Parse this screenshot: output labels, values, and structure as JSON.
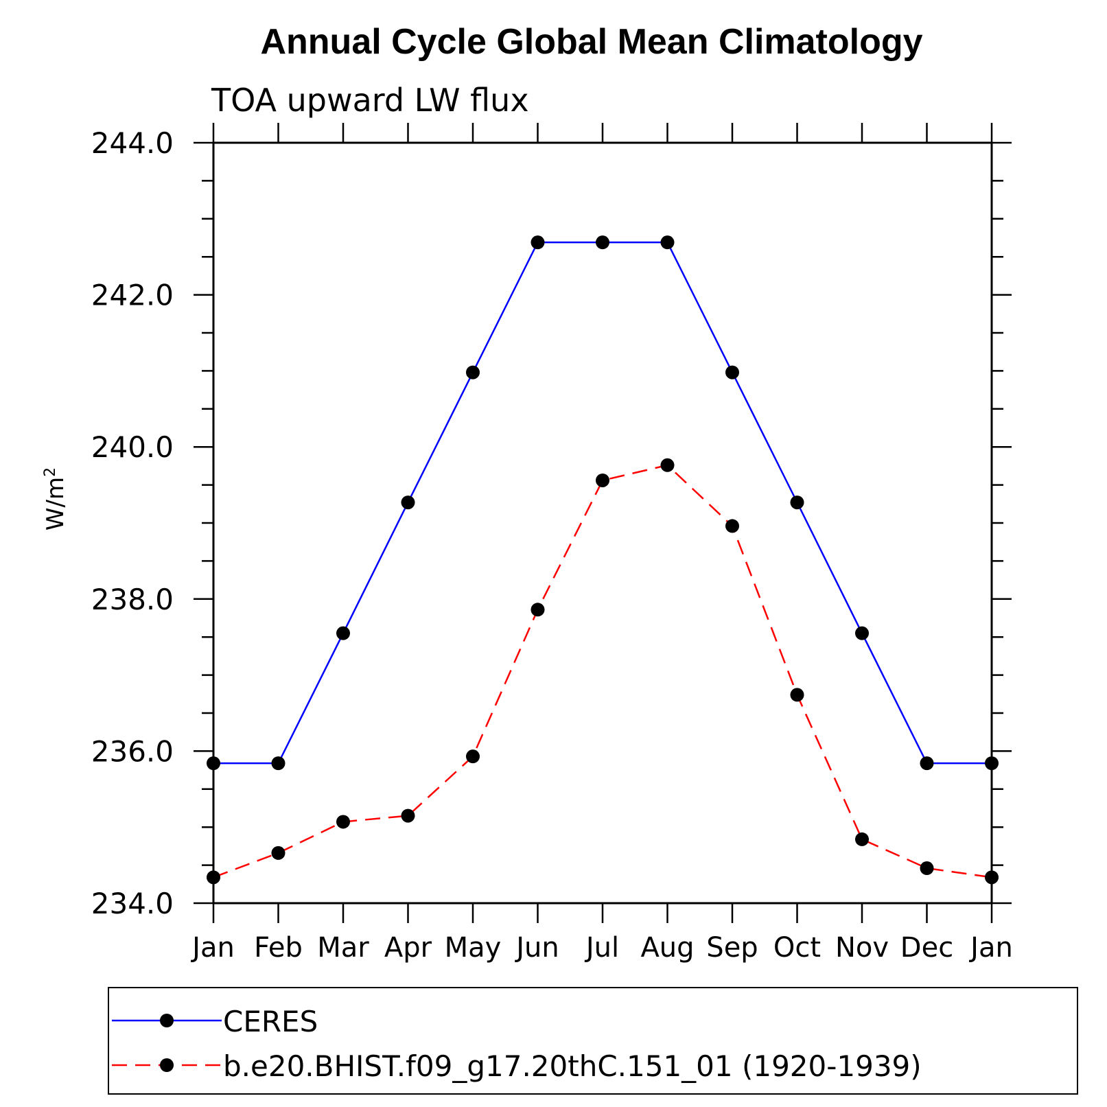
{
  "chart_data": {
    "type": "line",
    "title": "Annual Cycle Global Mean Climatology",
    "subtitle": "TOA upward LW flux",
    "xlabel": "",
    "ylabel": "W/m",
    "ylabel_superscript": "2",
    "categories": [
      "Jan",
      "Feb",
      "Mar",
      "Apr",
      "May",
      "Jun",
      "Jul",
      "Aug",
      "Sep",
      "Oct",
      "Nov",
      "Dec",
      "Jan"
    ],
    "ylim": [
      234.0,
      244.0
    ],
    "y_ticks": [
      "234.0",
      "236.0",
      "238.0",
      "240.0",
      "242.0",
      "244.0"
    ],
    "y_tick_values": [
      234,
      236,
      238,
      240,
      242,
      244
    ],
    "y_minor_step": 0.5,
    "grid": false,
    "legend_position": "bottom",
    "series": [
      {
        "name": "CERES",
        "color": "#0000ff",
        "line_style": "solid",
        "marker": "filled-circle",
        "values": [
          235.84,
          235.84,
          237.55,
          239.27,
          240.98,
          242.69,
          242.69,
          242.69,
          240.98,
          239.27,
          237.55,
          235.84,
          235.84
        ]
      },
      {
        "name": "b.e20.BHIST.f09_g17.20thC.151_01 (1920-1939)",
        "color": "#ff0000",
        "line_style": "dashed",
        "marker": "filled-circle",
        "values": [
          234.34,
          234.66,
          235.07,
          235.15,
          235.93,
          237.86,
          239.56,
          239.76,
          238.96,
          236.74,
          234.84,
          234.46,
          234.34
        ]
      }
    ]
  }
}
